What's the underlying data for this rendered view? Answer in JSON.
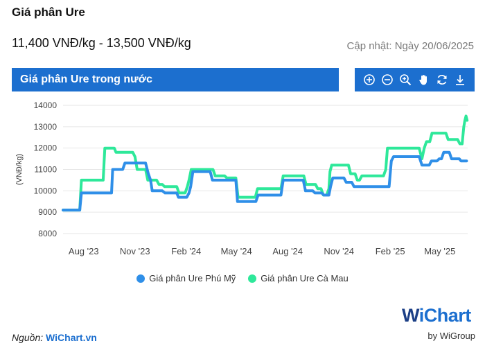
{
  "header": {
    "title": "Giá phân Ure",
    "price_range": "11,400 VNĐ/kg - 13,500 VNĐ/kg",
    "updated": "Cập nhật: Ngày 20/06/2025"
  },
  "panel": {
    "title": "Giá phân Ure trong nước",
    "toolbar": [
      "zoom-in-icon",
      "zoom-out-icon",
      "magnify-icon",
      "pan-hand-icon",
      "reset-icon",
      "download-icon"
    ]
  },
  "colors": {
    "accent": "#1c6fcf",
    "series_phu_my": "#2f8fe8",
    "series_ca_mau": "#2ee89a"
  },
  "chart_data": {
    "type": "line",
    "ylabel": "(VNĐ/kg)",
    "ylim": [
      8000,
      14000
    ],
    "yticks": [
      "14000",
      "13000",
      "12000",
      "11000",
      "10000",
      "9000",
      "8000"
    ],
    "xticks": [
      {
        "label": "Aug '23",
        "date": "2023-08-01"
      },
      {
        "label": "Nov '23",
        "date": "2023-11-01"
      },
      {
        "label": "Feb '24",
        "date": "2024-02-01"
      },
      {
        "label": "May '24",
        "date": "2024-05-01"
      },
      {
        "label": "Aug '24",
        "date": "2024-08-01"
      },
      {
        "label": "Nov '24",
        "date": "2024-11-01"
      },
      {
        "label": "Feb '25",
        "date": "2025-02-01"
      },
      {
        "label": "May '25",
        "date": "2025-05-01"
      }
    ],
    "series": [
      {
        "name": "Giá phân Ure Phú Mỹ",
        "points": [
          [
            "2023-06-25",
            9100
          ],
          [
            "2023-07-10",
            9100
          ],
          [
            "2023-07-25",
            9100
          ],
          [
            "2023-07-28",
            9900
          ],
          [
            "2023-08-20",
            9900
          ],
          [
            "2023-09-05",
            9900
          ],
          [
            "2023-09-20",
            9900
          ],
          [
            "2023-09-22",
            11000
          ],
          [
            "2023-10-10",
            11000
          ],
          [
            "2023-10-14",
            11300
          ],
          [
            "2023-11-20",
            11300
          ],
          [
            "2023-11-25",
            10800
          ],
          [
            "2023-11-29",
            10500
          ],
          [
            "2023-12-02",
            10000
          ],
          [
            "2023-12-20",
            10000
          ],
          [
            "2023-12-25",
            9900
          ],
          [
            "2024-01-15",
            9900
          ],
          [
            "2024-01-18",
            9700
          ],
          [
            "2024-02-02",
            9700
          ],
          [
            "2024-02-06",
            9900
          ],
          [
            "2024-02-09",
            10200
          ],
          [
            "2024-02-13",
            10900
          ],
          [
            "2024-03-15",
            10900
          ],
          [
            "2024-03-19",
            10500
          ],
          [
            "2024-04-20",
            10500
          ],
          [
            "2024-04-30",
            10500
          ],
          [
            "2024-05-03",
            9500
          ],
          [
            "2024-06-05",
            9500
          ],
          [
            "2024-06-09",
            9800
          ],
          [
            "2024-07-20",
            9800
          ],
          [
            "2024-07-24",
            10500
          ],
          [
            "2024-08-29",
            10500
          ],
          [
            "2024-09-02",
            10000
          ],
          [
            "2024-09-15",
            10000
          ],
          [
            "2024-09-19",
            9900
          ],
          [
            "2024-10-01",
            9900
          ],
          [
            "2024-10-05",
            9800
          ],
          [
            "2024-10-14",
            9800
          ],
          [
            "2024-10-17",
            10200
          ],
          [
            "2024-10-21",
            10600
          ],
          [
            "2024-11-10",
            10600
          ],
          [
            "2024-11-14",
            10400
          ],
          [
            "2024-11-24",
            10400
          ],
          [
            "2024-11-28",
            10200
          ],
          [
            "2025-01-30",
            10200
          ],
          [
            "2025-02-03",
            11400
          ],
          [
            "2025-02-07",
            11600
          ],
          [
            "2025-03-25",
            11600
          ],
          [
            "2025-03-30",
            11200
          ],
          [
            "2025-04-12",
            11200
          ],
          [
            "2025-04-16",
            11400
          ],
          [
            "2025-04-26",
            11400
          ],
          [
            "2025-04-30",
            11500
          ],
          [
            "2025-05-04",
            11500
          ],
          [
            "2025-05-08",
            11800
          ],
          [
            "2025-05-18",
            11800
          ],
          [
            "2025-05-22",
            11500
          ],
          [
            "2025-06-05",
            11500
          ],
          [
            "2025-06-08",
            11400
          ],
          [
            "2025-06-18",
            11400
          ]
        ]
      },
      {
        "name": "Giá phân Ure Cà Mau",
        "points": [
          [
            "2023-06-25",
            9100
          ],
          [
            "2023-07-25",
            9100
          ],
          [
            "2023-07-28",
            10500
          ],
          [
            "2023-09-05",
            10500
          ],
          [
            "2023-09-08",
            12000
          ],
          [
            "2023-09-25",
            12000
          ],
          [
            "2023-09-28",
            11800
          ],
          [
            "2023-10-28",
            11800
          ],
          [
            "2023-11-01",
            11600
          ],
          [
            "2023-11-05",
            11000
          ],
          [
            "2023-11-20",
            11000
          ],
          [
            "2023-11-24",
            10500
          ],
          [
            "2023-12-10",
            10500
          ],
          [
            "2023-12-14",
            10300
          ],
          [
            "2023-12-20",
            10300
          ],
          [
            "2023-12-24",
            10200
          ],
          [
            "2024-01-15",
            10200
          ],
          [
            "2024-01-19",
            9900
          ],
          [
            "2024-01-30",
            9900
          ],
          [
            "2024-02-03",
            10200
          ],
          [
            "2024-02-06",
            10500
          ],
          [
            "2024-02-10",
            11000
          ],
          [
            "2024-03-20",
            11000
          ],
          [
            "2024-03-24",
            10700
          ],
          [
            "2024-04-10",
            10700
          ],
          [
            "2024-04-14",
            10600
          ],
          [
            "2024-04-30",
            10600
          ],
          [
            "2024-05-04",
            9700
          ],
          [
            "2024-06-04",
            9700
          ],
          [
            "2024-06-08",
            10100
          ],
          [
            "2024-07-20",
            10100
          ],
          [
            "2024-07-24",
            10700
          ],
          [
            "2024-08-30",
            10700
          ],
          [
            "2024-09-03",
            10300
          ],
          [
            "2024-09-20",
            10300
          ],
          [
            "2024-09-24",
            10100
          ],
          [
            "2024-09-30",
            10100
          ],
          [
            "2024-10-04",
            9800
          ],
          [
            "2024-10-10",
            9800
          ],
          [
            "2024-10-14",
            10100
          ],
          [
            "2024-10-16",
            10900
          ],
          [
            "2024-10-19",
            11200
          ],
          [
            "2024-11-18",
            11200
          ],
          [
            "2024-11-22",
            10800
          ],
          [
            "2024-11-30",
            10800
          ],
          [
            "2024-12-04",
            10500
          ],
          [
            "2024-12-08",
            10500
          ],
          [
            "2024-12-12",
            10700
          ],
          [
            "2025-01-20",
            10700
          ],
          [
            "2025-01-24",
            11000
          ],
          [
            "2025-01-27",
            12000
          ],
          [
            "2025-03-25",
            12000
          ],
          [
            "2025-03-30",
            11500
          ],
          [
            "2025-04-03",
            12000
          ],
          [
            "2025-04-07",
            12300
          ],
          [
            "2025-04-13",
            12300
          ],
          [
            "2025-04-17",
            12700
          ],
          [
            "2025-05-12",
            12700
          ],
          [
            "2025-05-16",
            12400
          ],
          [
            "2025-06-02",
            12400
          ],
          [
            "2025-06-06",
            12200
          ],
          [
            "2025-06-10",
            12200
          ],
          [
            "2025-06-13",
            13000
          ],
          [
            "2025-06-15",
            13300
          ],
          [
            "2025-06-17",
            13500
          ],
          [
            "2025-06-19",
            13300
          ]
        ]
      }
    ]
  },
  "footer": {
    "source_label": "Nguồn:",
    "source_link": "WiChart.vn",
    "logo_w": "W",
    "logo_rest": "iChart",
    "logo_sub": "by WiGroup"
  }
}
